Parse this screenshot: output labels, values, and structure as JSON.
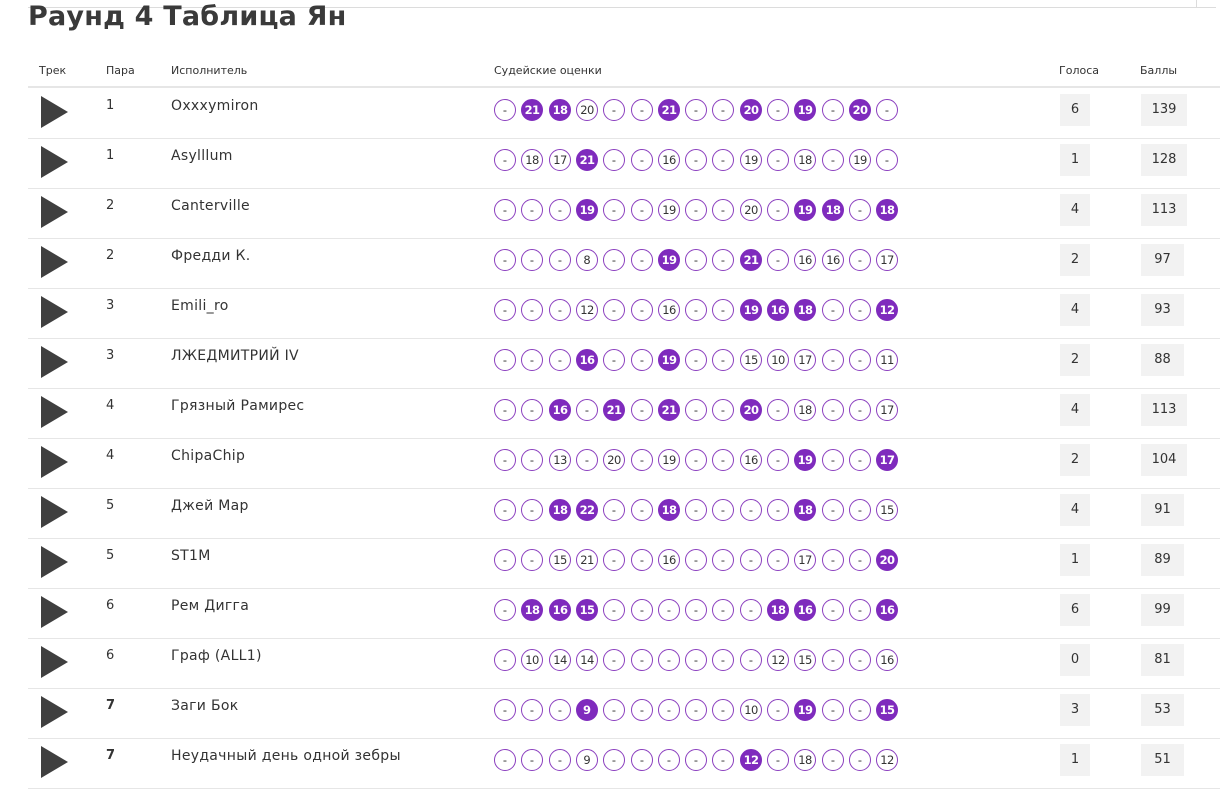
{
  "title": "Раунд 4 Таблица Ян",
  "columns": {
    "track": "Трек",
    "pair": "Пара",
    "artist": "Исполнитель",
    "scores": "Судейские оценки",
    "votes": "Голоса",
    "points": "Баллы"
  },
  "colors": {
    "accent": "#7f2bbd",
    "ring": "#8b3fbf",
    "play": "#3f3f3f"
  },
  "rows": [
    {
      "pair": "1",
      "artist": "Oxxxymiron",
      "votes": "6",
      "points": "139",
      "scores": [
        [
          "-",
          0
        ],
        [
          "21",
          1
        ],
        [
          "18",
          1
        ],
        [
          "20",
          0
        ],
        [
          "-",
          0
        ],
        [
          "-",
          0
        ],
        [
          "21",
          1
        ],
        [
          "-",
          0
        ],
        [
          "-",
          0
        ],
        [
          "20",
          1
        ],
        [
          "-",
          0
        ],
        [
          "19",
          1
        ],
        [
          "-",
          0
        ],
        [
          "20",
          1
        ],
        [
          "-",
          0
        ]
      ]
    },
    {
      "pair": "1",
      "artist": "Asylllum",
      "votes": "1",
      "points": "128",
      "scores": [
        [
          "-",
          0
        ],
        [
          "18",
          0
        ],
        [
          "17",
          0
        ],
        [
          "21",
          1
        ],
        [
          "-",
          0
        ],
        [
          "-",
          0
        ],
        [
          "16",
          0
        ],
        [
          "-",
          0
        ],
        [
          "-",
          0
        ],
        [
          "19",
          0
        ],
        [
          "-",
          0
        ],
        [
          "18",
          0
        ],
        [
          "-",
          0
        ],
        [
          "19",
          0
        ],
        [
          "-",
          0
        ]
      ]
    },
    {
      "pair": "2",
      "artist": "Canterville",
      "votes": "4",
      "points": "113",
      "scores": [
        [
          "-",
          0
        ],
        [
          "-",
          0
        ],
        [
          "-",
          0
        ],
        [
          "19",
          1
        ],
        [
          "-",
          0
        ],
        [
          "-",
          0
        ],
        [
          "19",
          0
        ],
        [
          "-",
          0
        ],
        [
          "-",
          0
        ],
        [
          "20",
          0
        ],
        [
          "-",
          0
        ],
        [
          "19",
          1
        ],
        [
          "18",
          1
        ],
        [
          "-",
          0
        ],
        [
          "18",
          1
        ]
      ]
    },
    {
      "pair": "2",
      "artist": "Фредди К.",
      "votes": "2",
      "points": "97",
      "scores": [
        [
          "-",
          0
        ],
        [
          "-",
          0
        ],
        [
          "-",
          0
        ],
        [
          "8",
          0
        ],
        [
          "-",
          0
        ],
        [
          "-",
          0
        ],
        [
          "19",
          1
        ],
        [
          "-",
          0
        ],
        [
          "-",
          0
        ],
        [
          "21",
          1
        ],
        [
          "-",
          0
        ],
        [
          "16",
          0
        ],
        [
          "16",
          0
        ],
        [
          "-",
          0
        ],
        [
          "17",
          0
        ]
      ]
    },
    {
      "pair": "3",
      "artist": "Emili_ro",
      "votes": "4",
      "points": "93",
      "scores": [
        [
          "-",
          0
        ],
        [
          "-",
          0
        ],
        [
          "-",
          0
        ],
        [
          "12",
          0
        ],
        [
          "-",
          0
        ],
        [
          "-",
          0
        ],
        [
          "16",
          0
        ],
        [
          "-",
          0
        ],
        [
          "-",
          0
        ],
        [
          "19",
          1
        ],
        [
          "16",
          1
        ],
        [
          "18",
          1
        ],
        [
          "-",
          0
        ],
        [
          "-",
          0
        ],
        [
          "12",
          1
        ]
      ]
    },
    {
      "pair": "3",
      "artist": "ЛЖЕДМИТРИЙ IV",
      "votes": "2",
      "points": "88",
      "scores": [
        [
          "-",
          0
        ],
        [
          "-",
          0
        ],
        [
          "-",
          0
        ],
        [
          "16",
          1
        ],
        [
          "-",
          0
        ],
        [
          "-",
          0
        ],
        [
          "19",
          1
        ],
        [
          "-",
          0
        ],
        [
          "-",
          0
        ],
        [
          "15",
          0
        ],
        [
          "10",
          0
        ],
        [
          "17",
          0
        ],
        [
          "-",
          0
        ],
        [
          "-",
          0
        ],
        [
          "11",
          0
        ]
      ]
    },
    {
      "pair": "4",
      "artist": "Грязный Рамирес",
      "votes": "4",
      "points": "113",
      "scores": [
        [
          "-",
          0
        ],
        [
          "-",
          0
        ],
        [
          "16",
          1
        ],
        [
          "-",
          0
        ],
        [
          "21",
          1
        ],
        [
          "-",
          0
        ],
        [
          "21",
          1
        ],
        [
          "-",
          0
        ],
        [
          "-",
          0
        ],
        [
          "20",
          1
        ],
        [
          "-",
          0
        ],
        [
          "18",
          0
        ],
        [
          "-",
          0
        ],
        [
          "-",
          0
        ],
        [
          "17",
          0
        ]
      ]
    },
    {
      "pair": "4",
      "artist": "ChipaChip",
      "votes": "2",
      "points": "104",
      "scores": [
        [
          "-",
          0
        ],
        [
          "-",
          0
        ],
        [
          "13",
          0
        ],
        [
          "-",
          0
        ],
        [
          "20",
          0
        ],
        [
          "-",
          0
        ],
        [
          "19",
          0
        ],
        [
          "-",
          0
        ],
        [
          "-",
          0
        ],
        [
          "16",
          0
        ],
        [
          "-",
          0
        ],
        [
          "19",
          1
        ],
        [
          "-",
          0
        ],
        [
          "-",
          0
        ],
        [
          "17",
          1
        ]
      ]
    },
    {
      "pair": "5",
      "artist": "Джей Мар",
      "votes": "4",
      "points": "91",
      "scores": [
        [
          "-",
          0
        ],
        [
          "-",
          0
        ],
        [
          "18",
          1
        ],
        [
          "22",
          1
        ],
        [
          "-",
          0
        ],
        [
          "-",
          0
        ],
        [
          "18",
          1
        ],
        [
          "-",
          0
        ],
        [
          "-",
          0
        ],
        [
          "-",
          0
        ],
        [
          "-",
          0
        ],
        [
          "18",
          1
        ],
        [
          "-",
          0
        ],
        [
          "-",
          0
        ],
        [
          "15",
          0
        ]
      ]
    },
    {
      "pair": "5",
      "artist": "ST1M",
      "votes": "1",
      "points": "89",
      "scores": [
        [
          "-",
          0
        ],
        [
          "-",
          0
        ],
        [
          "15",
          0
        ],
        [
          "21",
          0
        ],
        [
          "-",
          0
        ],
        [
          "-",
          0
        ],
        [
          "16",
          0
        ],
        [
          "-",
          0
        ],
        [
          "-",
          0
        ],
        [
          "-",
          0
        ],
        [
          "-",
          0
        ],
        [
          "17",
          0
        ],
        [
          "-",
          0
        ],
        [
          "-",
          0
        ],
        [
          "20",
          1
        ]
      ]
    },
    {
      "pair": "6",
      "artist": "Рем Дигга",
      "votes": "6",
      "points": "99",
      "scores": [
        [
          "-",
          0
        ],
        [
          "18",
          1
        ],
        [
          "16",
          1
        ],
        [
          "15",
          1
        ],
        [
          "-",
          0
        ],
        [
          "-",
          0
        ],
        [
          "-",
          0
        ],
        [
          "-",
          0
        ],
        [
          "-",
          0
        ],
        [
          "-",
          0
        ],
        [
          "18",
          1
        ],
        [
          "16",
          1
        ],
        [
          "-",
          0
        ],
        [
          "-",
          0
        ],
        [
          "16",
          1
        ]
      ]
    },
    {
      "pair": "6",
      "artist": "Граф (ALL1)",
      "votes": "0",
      "points": "81",
      "scores": [
        [
          "-",
          0
        ],
        [
          "10",
          0
        ],
        [
          "14",
          0
        ],
        [
          "14",
          0
        ],
        [
          "-",
          0
        ],
        [
          "-",
          0
        ],
        [
          "-",
          0
        ],
        [
          "-",
          0
        ],
        [
          "-",
          0
        ],
        [
          "-",
          0
        ],
        [
          "12",
          0
        ],
        [
          "15",
          0
        ],
        [
          "-",
          0
        ],
        [
          "-",
          0
        ],
        [
          "16",
          0
        ]
      ]
    },
    {
      "pair": "7",
      "artist": "Заги Бок",
      "votes": "3",
      "points": "53",
      "scores": [
        [
          "-",
          0
        ],
        [
          "-",
          0
        ],
        [
          "-",
          0
        ],
        [
          "9",
          1
        ],
        [
          "-",
          0
        ],
        [
          "-",
          0
        ],
        [
          "-",
          0
        ],
        [
          "-",
          0
        ],
        [
          "-",
          0
        ],
        [
          "10",
          0
        ],
        [
          "-",
          0
        ],
        [
          "19",
          1
        ],
        [
          "-",
          0
        ],
        [
          "-",
          0
        ],
        [
          "15",
          1
        ]
      ]
    },
    {
      "pair": "7",
      "artist": "Неудачный день одной зебры",
      "votes": "1",
      "points": "51",
      "scores": [
        [
          "-",
          0
        ],
        [
          "-",
          0
        ],
        [
          "-",
          0
        ],
        [
          "9",
          0
        ],
        [
          "-",
          0
        ],
        [
          "-",
          0
        ],
        [
          "-",
          0
        ],
        [
          "-",
          0
        ],
        [
          "-",
          0
        ],
        [
          "12",
          1
        ],
        [
          "-",
          0
        ],
        [
          "18",
          0
        ],
        [
          "-",
          0
        ],
        [
          "-",
          0
        ],
        [
          "12",
          0
        ]
      ]
    }
  ]
}
